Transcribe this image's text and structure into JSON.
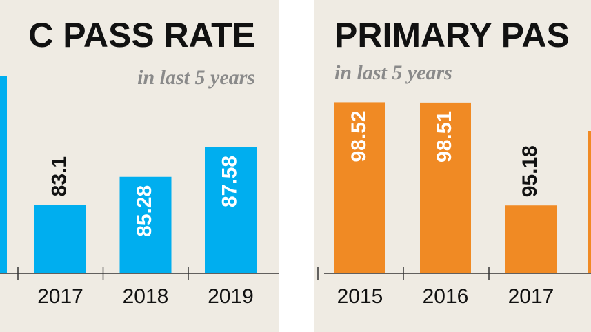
{
  "chart_data": [
    {
      "type": "bar",
      "title": "C PASS RATE",
      "subtitle": "in last 5 years",
      "categories": [
        "2017",
        "2018",
        "2019"
      ],
      "values": [
        83.1,
        85.28,
        87.58
      ],
      "color": "#00aeef",
      "ylim": [
        77.8,
        93.7
      ]
    },
    {
      "type": "bar",
      "title": "PRIMARY PAS",
      "subtitle": "in last 5 years",
      "categories": [
        "2015",
        "2016",
        "2017"
      ],
      "values": [
        98.52,
        98.51,
        95.18
      ],
      "color": "#f08a24",
      "ylim": [
        93.0,
        99.6
      ]
    }
  ]
}
